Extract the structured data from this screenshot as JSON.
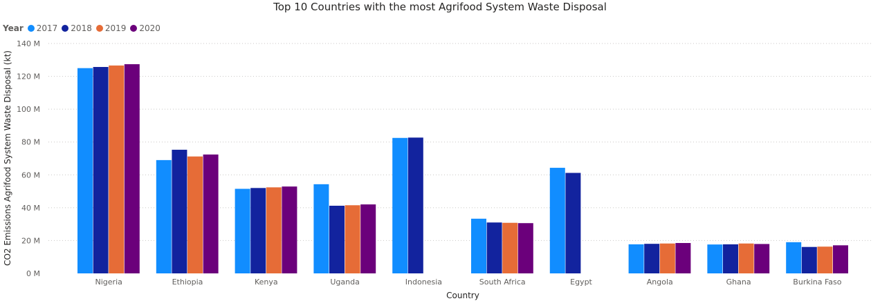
{
  "chart_data": {
    "type": "bar",
    "title": "Top 10 Countries with the most Agrifood System Waste Disposal",
    "xlabel": "Country",
    "ylabel": "CO2 Emissions Agrifood System Waste Disposal (kt)",
    "legend_title": "Year",
    "legend_position": "top-left",
    "grid": true,
    "ylim": [
      0,
      140000000
    ],
    "yticks": [
      {
        "value": 0,
        "label": "0 M"
      },
      {
        "value": 20000000,
        "label": "20 M"
      },
      {
        "value": 40000000,
        "label": "40 M"
      },
      {
        "value": 60000000,
        "label": "60 M"
      },
      {
        "value": 80000000,
        "label": "80 M"
      },
      {
        "value": 100000000,
        "label": "100 M"
      },
      {
        "value": 120000000,
        "label": "120 M"
      },
      {
        "value": 140000000,
        "label": "140 M"
      }
    ],
    "categories": [
      "Nigeria",
      "Ethiopia",
      "Kenya",
      "Uganda",
      "Indonesia",
      "South Africa",
      "Egypt",
      "Angola",
      "Ghana",
      "Burkina Faso"
    ],
    "series": [
      {
        "name": "2017",
        "color": "#118DFF",
        "values": [
          125000000,
          69000000,
          51500000,
          54300000,
          82500000,
          33300000,
          64300000,
          17700000,
          17600000,
          19000000
        ]
      },
      {
        "name": "2018",
        "color": "#12239E",
        "values": [
          125700000,
          75300000,
          52000000,
          41200000,
          82700000,
          31000000,
          61200000,
          18000000,
          17700000,
          16100000
        ]
      },
      {
        "name": "2019",
        "color": "#E66C37",
        "values": [
          126600000,
          71200000,
          52400000,
          41500000,
          null,
          30800000,
          null,
          18200000,
          18200000,
          16300000
        ]
      },
      {
        "name": "2020",
        "color": "#6B007B",
        "values": [
          127400000,
          72400000,
          52900000,
          42000000,
          null,
          30600000,
          null,
          18500000,
          17900000,
          17100000
        ]
      }
    ]
  }
}
